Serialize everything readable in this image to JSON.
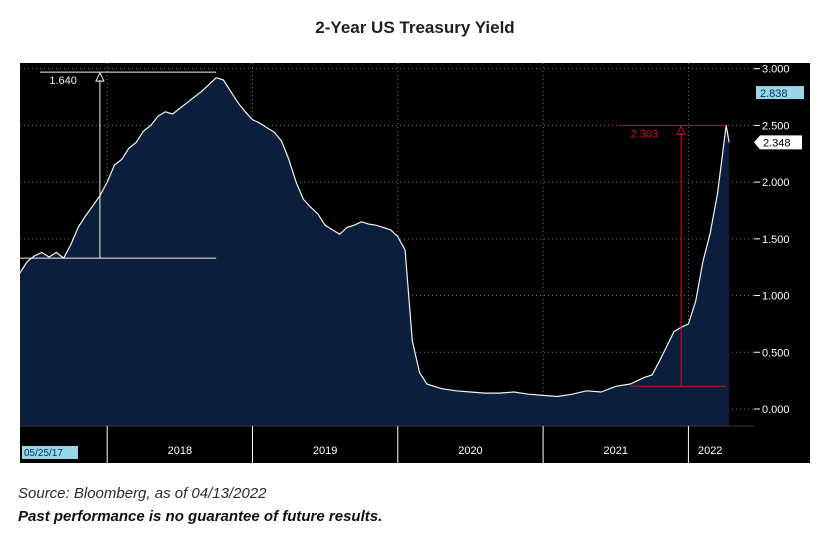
{
  "title": "2-Year US Treasury  Yield",
  "source": "Source: Bloomberg, as of 04/13/2022",
  "disclaimer": "Past performance is no guarantee of future results.",
  "colors": {
    "background": "#000000",
    "area_fill": "#0b1f3c",
    "line": "#f2f2f2",
    "grid": "#707070",
    "accent_red": "#d10f1f",
    "axis_text": "#ffffff",
    "current_label_bg": "#ffffff",
    "prev_label_bg": "#9ad7e6"
  },
  "chart_data": {
    "type": "area",
    "title": "2-Year US Treasury  Yield",
    "ylabel": "",
    "xlabel": "",
    "ylim": [
      -0.15,
      3.05
    ],
    "yticks": [
      0.0,
      0.5,
      1.0,
      1.5,
      2.0,
      2.5,
      3.0
    ],
    "ytick_labels": [
      "0.000",
      "0.500",
      "1.000",
      "1.500",
      "2.000",
      "2.500",
      "3.000"
    ],
    "xlim": [
      2017.4,
      2022.3
    ],
    "x_ticks": [
      {
        "label": "2018",
        "x": 2018.5
      },
      {
        "label": "2019",
        "x": 2019.5
      },
      {
        "label": "2020",
        "x": 2020.5
      },
      {
        "label": "2021",
        "x": 2021.5
      },
      {
        "label": "2022",
        "x": 2022.15
      }
    ],
    "x_separators": [
      2018.0,
      2019.0,
      2020.0,
      2021.0,
      2022.0
    ],
    "start_date_label": "05/25/17",
    "series": [
      {
        "name": "2-Year US Treasury Yield",
        "x": [
          2017.4,
          2017.45,
          2017.5,
          2017.55,
          2017.6,
          2017.65,
          2017.7,
          2017.75,
          2017.8,
          2017.85,
          2017.9,
          2017.95,
          2018.0,
          2018.05,
          2018.1,
          2018.15,
          2018.2,
          2018.25,
          2018.3,
          2018.35,
          2018.4,
          2018.45,
          2018.5,
          2018.55,
          2018.6,
          2018.65,
          2018.7,
          2018.75,
          2018.8,
          2018.85,
          2018.9,
          2018.95,
          2019.0,
          2019.05,
          2019.1,
          2019.15,
          2019.2,
          2019.25,
          2019.3,
          2019.35,
          2019.4,
          2019.45,
          2019.5,
          2019.55,
          2019.6,
          2019.65,
          2019.7,
          2019.75,
          2019.8,
          2019.85,
          2019.9,
          2019.95,
          2020.0,
          2020.05,
          2020.1,
          2020.15,
          2020.2,
          2020.25,
          2020.3,
          2020.35,
          2020.4,
          2020.5,
          2020.6,
          2020.7,
          2020.8,
          2020.9,
          2021.0,
          2021.1,
          2021.2,
          2021.3,
          2021.4,
          2021.5,
          2021.6,
          2021.65,
          2021.7,
          2021.75,
          2021.8,
          2021.85,
          2021.9,
          2021.95,
          2022.0,
          2022.05,
          2022.1,
          2022.15,
          2022.2,
          2022.24,
          2022.26,
          2022.28
        ],
        "values": [
          1.2,
          1.3,
          1.35,
          1.38,
          1.34,
          1.38,
          1.33,
          1.45,
          1.6,
          1.7,
          1.79,
          1.88,
          2.0,
          2.15,
          2.2,
          2.3,
          2.35,
          2.45,
          2.5,
          2.58,
          2.62,
          2.6,
          2.65,
          2.7,
          2.75,
          2.8,
          2.86,
          2.92,
          2.9,
          2.8,
          2.7,
          2.62,
          2.55,
          2.52,
          2.48,
          2.44,
          2.36,
          2.2,
          2.0,
          1.85,
          1.78,
          1.72,
          1.62,
          1.58,
          1.54,
          1.6,
          1.62,
          1.65,
          1.63,
          1.62,
          1.6,
          1.58,
          1.52,
          1.4,
          0.6,
          0.32,
          0.22,
          0.2,
          0.18,
          0.17,
          0.16,
          0.15,
          0.14,
          0.14,
          0.15,
          0.13,
          0.12,
          0.11,
          0.13,
          0.16,
          0.15,
          0.2,
          0.22,
          0.25,
          0.28,
          0.3,
          0.42,
          0.55,
          0.68,
          0.72,
          0.75,
          0.95,
          1.3,
          1.55,
          1.9,
          2.3,
          2.5,
          2.35
        ]
      }
    ],
    "previous_close_label": "2.838",
    "last_value_label": "2.348",
    "annotations": [
      {
        "label": "1.640",
        "from_x": 2017.4,
        "from_y": 1.33,
        "to_x": 2018.75,
        "to_y": 2.97,
        "color": "white",
        "arrow_x": 2017.95
      },
      {
        "label": "2.303",
        "from_x": 2021.6,
        "from_y": 0.2,
        "to_x": 2022.26,
        "to_y": 2.5,
        "color": "red",
        "arrow_x": 2021.95
      }
    ]
  }
}
